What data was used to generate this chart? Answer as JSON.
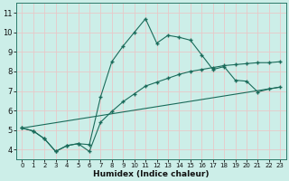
{
  "xlabel": "Humidex (Indice chaleur)",
  "bg_color": "#cceee8",
  "grid_color": "#e8c8c8",
  "line_color": "#1a6b5a",
  "xlim": [
    -0.5,
    23.5
  ],
  "ylim": [
    3.5,
    11.5
  ],
  "xticks": [
    0,
    1,
    2,
    3,
    4,
    5,
    6,
    7,
    8,
    9,
    10,
    11,
    12,
    13,
    14,
    15,
    16,
    17,
    18,
    19,
    20,
    21,
    22,
    23
  ],
  "yticks": [
    4,
    5,
    6,
    7,
    8,
    9,
    10,
    11
  ],
  "line1_x": [
    0,
    1,
    2,
    3,
    4,
    5,
    6,
    7,
    8,
    9,
    10,
    11,
    12,
    13,
    14,
    15,
    16,
    17,
    18,
    19,
    20,
    21,
    22,
    23
  ],
  "line1_y": [
    5.1,
    4.95,
    4.55,
    3.9,
    4.2,
    4.3,
    4.25,
    6.7,
    8.5,
    9.3,
    10.0,
    10.7,
    9.45,
    9.85,
    9.75,
    9.6,
    8.85,
    8.1,
    8.25,
    7.55,
    7.5,
    6.95,
    7.1,
    7.2
  ],
  "line2_x": [
    0,
    1,
    2,
    3,
    4,
    5,
    6,
    7,
    8,
    9,
    10,
    11,
    12,
    13,
    14,
    15,
    16,
    17,
    18,
    19,
    20,
    21,
    22,
    23
  ],
  "line2_y": [
    5.1,
    4.95,
    4.55,
    3.9,
    4.2,
    4.3,
    3.9,
    5.4,
    5.95,
    6.45,
    6.85,
    7.25,
    7.45,
    7.65,
    7.85,
    8.0,
    8.1,
    8.2,
    8.3,
    8.35,
    8.4,
    8.45,
    8.45,
    8.5
  ],
  "line3_x": [
    0,
    23
  ],
  "line3_y": [
    5.1,
    7.2
  ]
}
